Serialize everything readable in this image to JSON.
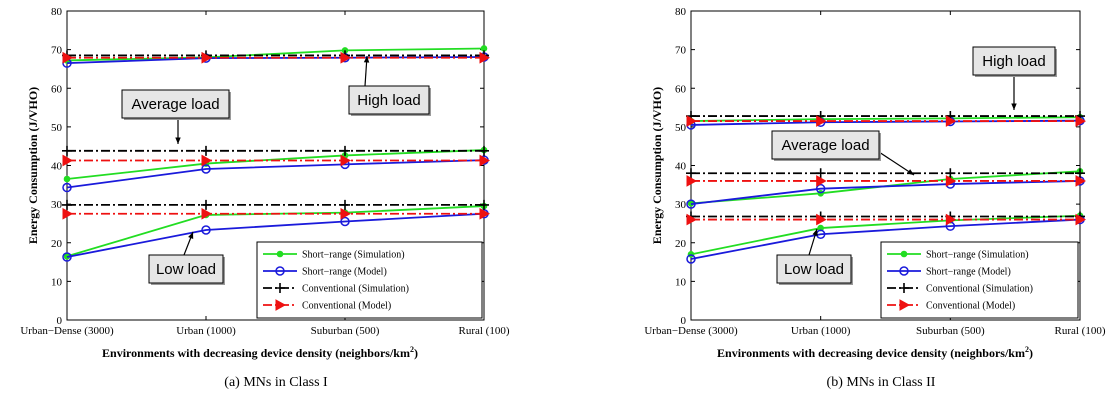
{
  "chart_data": [
    {
      "type": "line",
      "caption": "(a) MNs in Class I",
      "xlabel": "Environments with decreasing device density (neighbors/km",
      "xlabel_sup": "2",
      "xlabel_end": ")",
      "ylabel": "Energy Consumption (J/VHO)",
      "categories": [
        "Urban−Dense (3000)",
        "Urban (1000)",
        "Suburban (500)",
        "Rural (100)"
      ],
      "ylim": [
        0,
        80
      ],
      "yticks": [
        0,
        10,
        20,
        30,
        40,
        50,
        60,
        70,
        80
      ],
      "grid": false,
      "legend": {
        "position": "lower-right",
        "entries": [
          "Short−range (Simulation)",
          "Short−range (Model)",
          "Conventional (Simulation)",
          "Conventional (Model)"
        ]
      },
      "series": [
        {
          "name": "Short−range (Simulation)",
          "load": "High load",
          "values": [
            67.2,
            68.0,
            69.8,
            70.3
          ]
        },
        {
          "name": "Short−range (Model)",
          "load": "High load",
          "values": [
            66.5,
            67.8,
            67.9,
            68.1
          ]
        },
        {
          "name": "Conventional (Simulation)",
          "load": "High load",
          "values": [
            68.5,
            68.5,
            68.5,
            68.5
          ]
        },
        {
          "name": "Conventional (Model)",
          "load": "High load",
          "values": [
            67.9,
            67.9,
            67.9,
            67.9
          ]
        },
        {
          "name": "Short−range (Simulation)",
          "load": "Average load",
          "values": [
            36.5,
            40.5,
            42.6,
            44.0
          ]
        },
        {
          "name": "Short−range (Model)",
          "load": "Average load",
          "values": [
            34.3,
            39.1,
            40.3,
            41.4
          ]
        },
        {
          "name": "Conventional (Simulation)",
          "load": "Average load",
          "values": [
            43.8,
            43.8,
            43.8,
            43.8
          ]
        },
        {
          "name": "Conventional (Model)",
          "load": "Average load",
          "values": [
            41.3,
            41.3,
            41.3,
            41.3
          ]
        },
        {
          "name": "Short−range (Simulation)",
          "load": "Low load",
          "values": [
            16.5,
            27.2,
            27.8,
            29.5
          ]
        },
        {
          "name": "Short−range (Model)",
          "load": "Low load",
          "values": [
            16.3,
            23.3,
            25.5,
            27.5
          ]
        },
        {
          "name": "Conventional (Simulation)",
          "load": "Low load",
          "values": [
            29.8,
            29.8,
            29.8,
            29.8
          ]
        },
        {
          "name": "Conventional (Model)",
          "load": "Low load",
          "values": [
            27.5,
            27.5,
            27.5,
            27.5
          ]
        }
      ],
      "annotations": [
        "High load",
        "Average load",
        "Low load"
      ]
    },
    {
      "type": "line",
      "caption": "(b) MNs in Class II",
      "xlabel": "Environments with decreasing device density (neighbors/km",
      "xlabel_sup": "2",
      "xlabel_end": ")",
      "ylabel": "Energy Consumption (J/VHO)",
      "categories": [
        "Urban−Dense (3000)",
        "Urban (1000)",
        "Suburban (500)",
        "Rural (100)"
      ],
      "ylim": [
        0,
        80
      ],
      "yticks": [
        0,
        10,
        20,
        30,
        40,
        50,
        60,
        70,
        80
      ],
      "grid": false,
      "legend": {
        "position": "lower-right",
        "entries": [
          "Short−range (Simulation)",
          "Short−range (Model)",
          "Conventional (Simulation)",
          "Conventional (Model)"
        ]
      },
      "series": [
        {
          "name": "Short−range (Simulation)",
          "load": "High load",
          "values": [
            51.5,
            52.0,
            52.2,
            52.5
          ]
        },
        {
          "name": "Short−range (Model)",
          "load": "High load",
          "values": [
            50.5,
            51.2,
            51.4,
            51.6
          ]
        },
        {
          "name": "Conventional (Simulation)",
          "load": "High load",
          "values": [
            52.8,
            52.8,
            52.8,
            52.8
          ]
        },
        {
          "name": "Conventional (Model)",
          "load": "High load",
          "values": [
            51.5,
            51.5,
            51.5,
            51.5
          ]
        },
        {
          "name": "Short−range (Simulation)",
          "load": "Average load",
          "values": [
            30.2,
            32.8,
            36.5,
            38.5
          ]
        },
        {
          "name": "Short−range (Model)",
          "load": "Average load",
          "values": [
            30.0,
            34.0,
            35.2,
            36.0
          ]
        },
        {
          "name": "Conventional (Simulation)",
          "load": "Average load",
          "values": [
            38.0,
            38.0,
            38.0,
            38.0
          ]
        },
        {
          "name": "Conventional (Model)",
          "load": "Average load",
          "values": [
            36.0,
            36.0,
            36.0,
            36.0
          ]
        },
        {
          "name": "Short−range (Simulation)",
          "load": "Low load",
          "values": [
            17.0,
            23.8,
            25.8,
            27.0
          ]
        },
        {
          "name": "Short−range (Model)",
          "load": "Low load",
          "values": [
            15.8,
            22.2,
            24.3,
            26.0
          ]
        },
        {
          "name": "Conventional (Simulation)",
          "load": "Low load",
          "values": [
            26.8,
            26.8,
            26.8,
            26.8
          ]
        },
        {
          "name": "Conventional (Model)",
          "load": "Low load",
          "values": [
            26.0,
            26.0,
            26.0,
            26.0
          ]
        }
      ],
      "annotations": [
        "High load",
        "Average load",
        "Low load"
      ]
    }
  ],
  "style": {
    "colors": {
      "Short−range (Simulation)": "#22dd22",
      "Short−range (Model)": "#1a1adb",
      "Conventional (Simulation)": "#000000",
      "Conventional (Model)": "#ee1111"
    },
    "markers": {
      "Short−range (Simulation)": "dot",
      "Short−range (Model)": "circle",
      "Conventional (Simulation)": "plus",
      "Conventional (Model)": "triangle-right"
    },
    "dashes": {
      "Short−range (Simulation)": "solid",
      "Short−range (Model)": "solid",
      "Conventional (Simulation)": "dash-dot",
      "Conventional (Model)": "dash-dot"
    }
  }
}
